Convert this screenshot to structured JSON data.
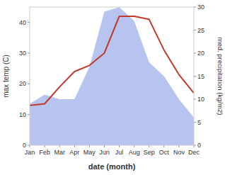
{
  "chart_data": {
    "type": "line",
    "xlabel": "date (month)",
    "ylabel": "max temp (C)",
    "y2label": "med. precipitation (kg/m2)",
    "categories": [
      "Jan",
      "Feb",
      "Mar",
      "Apr",
      "May",
      "Jun",
      "Jul",
      "Aug",
      "Sep",
      "Oct",
      "Nov",
      "Dec"
    ],
    "series": [
      {
        "type": "line",
        "color": "#c0392b",
        "values": [
          13,
          13.5,
          19,
          24,
          26,
          30,
          42,
          42,
          41,
          31,
          23,
          17
        ]
      },
      {
        "type": "area",
        "axis": "y2",
        "color": "#b8c4f0",
        "values": [
          9,
          11,
          10,
          10,
          17,
          29,
          30,
          27,
          18,
          15,
          10,
          6
        ]
      }
    ],
    "ylim": [
      0,
      45
    ],
    "yticks": [
      0,
      10,
      20,
      30,
      40
    ],
    "y2lim": [
      0,
      30
    ],
    "y2ticks": [
      0,
      5,
      10,
      15,
      20,
      25,
      30
    ],
    "grid": false
  }
}
